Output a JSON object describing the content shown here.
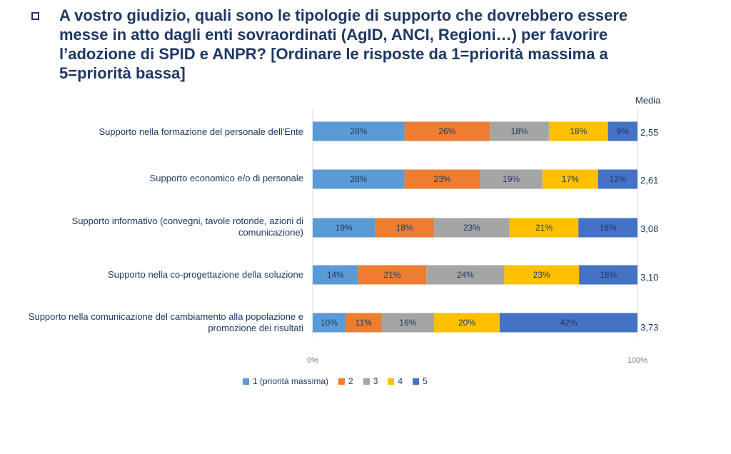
{
  "question": "A vostro giudizio, quali sono le tipologie di supporto che dovrebbero essere messe in atto dagli enti sovraordinati (AgID, ANCI, Regioni…) per favorire l’adozione di SPID e ANPR? [Ordinare le risposte da 1=priorità massima a 5=priorità bassa]",
  "chart_data": {
    "type": "bar",
    "orientation": "horizontal",
    "stacked": true,
    "percent": true,
    "media_header": "Media",
    "categories": [
      "Supporto nella formazione del personale dell'Ente",
      "Supporto economico e/o di personale",
      "Supporto informativo (convegni, tavole rotonde, azioni di comunicazione)",
      "Supporto nella co-progettazione della soluzione",
      "Supporto nella comunicazione del cambiamento alla popolazione e promozione dei risultati"
    ],
    "media": [
      "2,55",
      "2,61",
      "3,08",
      "3,10",
      "3,73"
    ],
    "series": [
      {
        "name": "1 (priorità massima)",
        "color": "#5b9bd5",
        "values": [
          28,
          28,
          19,
          14,
          10
        ]
      },
      {
        "name": "2",
        "color": "#ed7d31",
        "values": [
          26,
          23,
          18,
          21,
          11
        ]
      },
      {
        "name": "3",
        "color": "#a5a5a5",
        "values": [
          18,
          19,
          23,
          24,
          16
        ]
      },
      {
        "name": "4",
        "color": "#ffc000",
        "values": [
          18,
          17,
          21,
          23,
          20
        ]
      },
      {
        "name": "5",
        "color": "#4472c4",
        "values": [
          9,
          12,
          18,
          18,
          42
        ]
      }
    ],
    "xlim": [
      0,
      100
    ],
    "xticks": [
      "0%",
      "100%"
    ],
    "legend_position": "bottom"
  }
}
